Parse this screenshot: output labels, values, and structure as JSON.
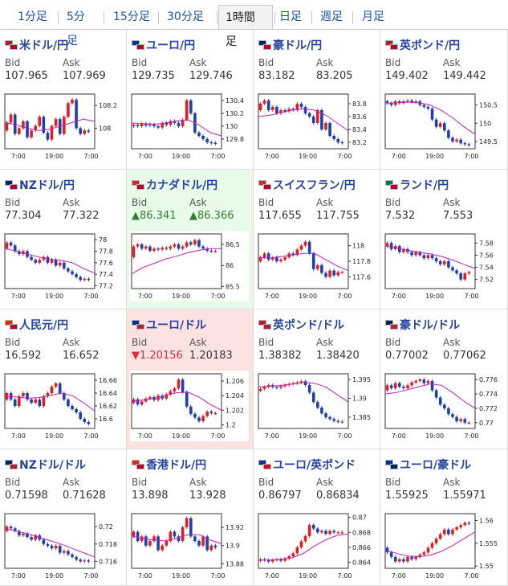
{
  "tabs": [
    {
      "label": "1分足",
      "active": false
    },
    {
      "label": "5分足",
      "active": false
    },
    {
      "label": "15分足",
      "active": false
    },
    {
      "label": "30分足",
      "active": false
    },
    {
      "label": "1時間足",
      "active": true
    },
    {
      "label": "日足",
      "active": false
    },
    {
      "label": "週足",
      "active": false
    },
    {
      "label": "月足",
      "active": false
    }
  ],
  "labels": {
    "bid": "Bid",
    "ask": "Ask"
  },
  "colors": {
    "link": "#1b52a6",
    "up_candle": "#e02020",
    "down_candle": "#1f3fb0",
    "ma": "#c020c0",
    "up_bg": "#e8fbe8",
    "down_bg": "#fde2e2",
    "up_text": "#2f7d2f",
    "down_text": "#e0283a"
  },
  "pairs": [
    {
      "name": "米ドル/円",
      "flags": [
        "#c8102e",
        "#bc002d"
      ],
      "bid": "107.965",
      "ask": "107.969",
      "change": "none",
      "chart": {
        "ticks_y": [
          "108.2",
          "108"
        ],
        "ticks_x": [
          "7:00",
          "19:00",
          "7:00"
        ],
        "range": [
          107.82,
          108.3
        ],
        "path": [
          107.98,
          108.05,
          108.12,
          107.95,
          108.0,
          108.06,
          107.92,
          107.98,
          108.02,
          108.1,
          107.96,
          107.9,
          108.02,
          108.08,
          107.95,
          108.1,
          108.22,
          108.25,
          108.0,
          107.95,
          107.98,
          107.97
        ],
        "ma": [
          108.05,
          108.03,
          108.0,
          107.98,
          107.99,
          108.02,
          108.05,
          108.08,
          108.06
        ]
      }
    },
    {
      "name": "ユーロ/円",
      "flags": [
        "#003399",
        "#bc002d"
      ],
      "bid": "129.735",
      "ask": "129.746",
      "change": "none",
      "chart": {
        "ticks_y": [
          "130.4",
          "130.2",
          "130",
          "129.8"
        ],
        "ticks_x": [
          "7:00",
          "19:00",
          "7:00"
        ],
        "range": [
          129.65,
          130.5
        ],
        "path": [
          130.0,
          130.02,
          130.0,
          130.04,
          130.01,
          130.03,
          130.0,
          129.98,
          130.05,
          130.02,
          130.08,
          130.05,
          130.0,
          130.1,
          130.4,
          130.2,
          129.9,
          129.85,
          129.8,
          129.75,
          129.74,
          129.73
        ],
        "ma": [
          130.05,
          130.04,
          130.03,
          130.05,
          130.08,
          130.1,
          130.02,
          129.9,
          129.85
        ]
      }
    },
    {
      "name": "豪ドル/円",
      "flags": [
        "#012169",
        "#bc002d"
      ],
      "bid": "83.182",
      "ask": "83.205",
      "change": "none",
      "chart": {
        "ticks_y": [
          "83.8",
          "83.6",
          "83.4",
          "83.2"
        ],
        "ticks_x": [
          "7:00",
          "19:00",
          "7:00"
        ],
        "range": [
          83.1,
          83.95
        ],
        "path": [
          83.7,
          83.8,
          83.85,
          83.7,
          83.75,
          83.65,
          83.7,
          83.68,
          83.72,
          83.7,
          83.8,
          83.75,
          83.65,
          83.6,
          83.5,
          83.7,
          83.4,
          83.5,
          83.3,
          83.25,
          83.2,
          83.19
        ],
        "ma": [
          83.6,
          83.62,
          83.66,
          83.7,
          83.72,
          83.7,
          83.62,
          83.5,
          83.38
        ]
      }
    },
    {
      "name": "英ポンド/円",
      "flags": [
        "#c8102e",
        "#bc002d"
      ],
      "bid": "149.402",
      "ask": "149.442",
      "change": "none",
      "chart": {
        "ticks_y": [
          "150.5",
          "150",
          "149.5"
        ],
        "ticks_x": [
          "7:00",
          "19:00",
          "7:00"
        ],
        "range": [
          149.3,
          150.8
        ],
        "path": [
          150.6,
          150.55,
          150.5,
          150.6,
          150.55,
          150.6,
          150.62,
          150.58,
          150.6,
          150.5,
          150.45,
          150.4,
          150.1,
          149.9,
          150.0,
          149.8,
          149.6,
          149.5,
          149.55,
          149.45,
          149.42,
          149.4
        ],
        "ma": [
          150.55,
          150.56,
          150.58,
          150.56,
          150.5,
          150.35,
          150.15,
          149.9,
          149.7
        ]
      }
    },
    {
      "name": "NZドル/円",
      "flags": [
        "#012169",
        "#bc002d"
      ],
      "bid": "77.304",
      "ask": "77.322",
      "change": "none",
      "chart": {
        "ticks_y": [
          "78",
          "77.8",
          "77.6",
          "77.4",
          "77.2"
        ],
        "ticks_x": [
          "7:00",
          "19:00",
          "7:00"
        ],
        "range": [
          77.15,
          78.1
        ],
        "path": [
          77.85,
          77.95,
          77.9,
          77.8,
          77.75,
          77.8,
          77.7,
          77.65,
          77.6,
          77.65,
          77.7,
          77.6,
          77.65,
          77.55,
          77.6,
          77.5,
          77.45,
          77.4,
          77.35,
          77.3,
          77.32,
          77.3
        ],
        "ma": [
          77.85,
          77.8,
          77.75,
          77.7,
          77.66,
          77.64,
          77.6,
          77.5,
          77.42
        ]
      }
    },
    {
      "name": "カナダドル/円",
      "flags": [
        "#d52b1e",
        "#bc002d"
      ],
      "bid": "86.341",
      "ask": "86.366",
      "change": "up",
      "chart": {
        "ticks_y": [
          "86.5",
          "86",
          "85.5"
        ],
        "ticks_x": [
          "7:00",
          "19:00",
          "7:00"
        ],
        "range": [
          85.45,
          86.75
        ],
        "path": [
          86.2,
          86.45,
          86.5,
          86.4,
          86.45,
          86.35,
          86.4,
          86.38,
          86.42,
          86.4,
          86.45,
          86.5,
          86.4,
          86.45,
          86.55,
          86.5,
          86.6,
          86.45,
          86.4,
          86.35,
          86.34,
          86.34
        ],
        "ma": [
          85.8,
          85.95,
          86.05,
          86.15,
          86.22,
          86.3,
          86.36,
          86.4,
          86.4
        ]
      }
    },
    {
      "name": "スイスフラン/円",
      "flags": [
        "#d52b1e",
        "#bc002d"
      ],
      "bid": "117.655",
      "ask": "117.755",
      "change": "none",
      "chart": {
        "ticks_y": [
          "118",
          "117.8",
          "117.6"
        ],
        "ticks_x": [
          "7:00",
          "19:00",
          "7:00"
        ],
        "range": [
          117.45,
          118.15
        ],
        "path": [
          117.8,
          117.85,
          117.9,
          117.82,
          117.85,
          117.8,
          117.82,
          117.85,
          117.9,
          117.88,
          117.95,
          118.0,
          118.05,
          117.9,
          117.7,
          117.75,
          117.65,
          117.6,
          117.68,
          117.62,
          117.66,
          117.66
        ],
        "ma": [
          117.85,
          117.84,
          117.86,
          117.88,
          117.9,
          117.9,
          117.82,
          117.74,
          117.68
        ]
      }
    },
    {
      "name": "ランド/円",
      "flags": [
        "#007a4d",
        "#bc002d"
      ],
      "bid": "7.532",
      "ask": "7.553",
      "change": "none",
      "chart": {
        "ticks_y": [
          "7.58",
          "7.56",
          "7.54",
          "7.52"
        ],
        "ticks_x": [
          "7:00",
          "19:00",
          "7:00"
        ],
        "range": [
          7.505,
          7.595
        ],
        "path": [
          7.575,
          7.58,
          7.57,
          7.575,
          7.565,
          7.57,
          7.565,
          7.56,
          7.565,
          7.56,
          7.555,
          7.56,
          7.555,
          7.55,
          7.545,
          7.55,
          7.54,
          7.535,
          7.53,
          7.52,
          7.53,
          7.532
        ],
        "ma": [
          7.575,
          7.572,
          7.568,
          7.565,
          7.562,
          7.558,
          7.552,
          7.545,
          7.538
        ]
      }
    },
    {
      "name": "人民元/円",
      "flags": [
        "#de2910",
        "#bc002d"
      ],
      "bid": "16.592",
      "ask": "16.652",
      "change": "none",
      "chart": {
        "ticks_y": [
          "16.66",
          "16.64",
          "16.62",
          "16.6"
        ],
        "ticks_x": [
          "7:00",
          "19:00",
          "7:00"
        ],
        "range": [
          16.585,
          16.67
        ],
        "path": [
          16.63,
          16.64,
          16.63,
          16.62,
          16.635,
          16.64,
          16.63,
          16.625,
          16.63,
          16.62,
          16.635,
          16.64,
          16.65,
          16.655,
          16.64,
          16.63,
          16.62,
          16.615,
          16.61,
          16.6,
          16.595,
          16.592
        ],
        "ma": [
          16.635,
          16.634,
          16.632,
          16.633,
          16.636,
          16.64,
          16.636,
          16.625,
          16.612
        ]
      }
    },
    {
      "name": "ユーロ/ドル",
      "flags": [
        "#003399",
        "#b22234"
      ],
      "bid": "1.20156",
      "ask": "1.20183",
      "change": "down",
      "chart": {
        "ticks_y": [
          "1.206",
          "1.204",
          "1.202",
          "1.2"
        ],
        "ticks_x": [
          "7:00",
          "19:00",
          "7:00"
        ],
        "range": [
          1.1995,
          1.207
        ],
        "path": [
          1.203,
          1.2035,
          1.2028,
          1.2032,
          1.2036,
          1.2038,
          1.2034,
          1.204,
          1.2036,
          1.2042,
          1.2046,
          1.205,
          1.2062,
          1.2045,
          1.2025,
          1.2015,
          1.201,
          1.2005,
          1.2012,
          1.2018,
          1.2016,
          1.2016
        ],
        "ma": [
          1.2032,
          1.2034,
          1.2036,
          1.204,
          1.2044,
          1.2045,
          1.2038,
          1.2028,
          1.202
        ]
      }
    },
    {
      "name": "英ポンド/ドル",
      "flags": [
        "#c8102e",
        "#b22234"
      ],
      "bid": "1.38382",
      "ask": "1.38420",
      "change": "none",
      "chart": {
        "ticks_y": [
          "1.395",
          "1.39",
          "1.385"
        ],
        "ticks_x": [
          "7:00",
          "19:00",
          "7:00"
        ],
        "range": [
          1.382,
          1.3965
        ],
        "path": [
          1.392,
          1.3925,
          1.393,
          1.3935,
          1.393,
          1.3928,
          1.3932,
          1.3935,
          1.3938,
          1.394,
          1.3942,
          1.3945,
          1.3935,
          1.3915,
          1.389,
          1.3875,
          1.386,
          1.385,
          1.3845,
          1.384,
          1.3838,
          1.3838
        ],
        "ma": [
          1.393,
          1.3932,
          1.3934,
          1.3938,
          1.3942,
          1.394,
          1.393,
          1.391,
          1.389
        ]
      }
    },
    {
      "name": "豪ドル/ドル",
      "flags": [
        "#012169",
        "#b22234"
      ],
      "bid": "0.77002",
      "ask": "0.77062",
      "change": "none",
      "chart": {
        "ticks_y": [
          "0.776",
          "0.774",
          "0.772",
          "0.77"
        ],
        "ticks_x": [
          "7:00",
          "19:00",
          "7:00"
        ],
        "range": [
          0.7692,
          0.7768
        ],
        "path": [
          0.7745,
          0.7752,
          0.7748,
          0.7755,
          0.775,
          0.7748,
          0.7752,
          0.7756,
          0.7758,
          0.776,
          0.7755,
          0.7758,
          0.7745,
          0.7735,
          0.7725,
          0.772,
          0.7712,
          0.7708,
          0.7702,
          0.7705,
          0.77,
          0.77
        ],
        "ma": [
          0.774,
          0.7742,
          0.7746,
          0.775,
          0.7754,
          0.7752,
          0.7742,
          0.773,
          0.772
        ]
      }
    },
    {
      "name": "NZドル/ドル",
      "flags": [
        "#012169",
        "#b22234"
      ],
      "bid": "0.71598",
      "ask": "0.71628",
      "change": "none",
      "chart": {
        "ticks_y": [
          "0.72",
          "0.718",
          "0.716"
        ],
        "ticks_x": [
          "7:00",
          "19:00",
          "7:00"
        ],
        "range": [
          0.7152,
          0.7215
        ],
        "path": [
          0.7195,
          0.72,
          0.7198,
          0.7195,
          0.719,
          0.7192,
          0.7188,
          0.7185,
          0.719,
          0.7185,
          0.718,
          0.7178,
          0.7175,
          0.7178,
          0.717,
          0.7172,
          0.7168,
          0.7165,
          0.7162,
          0.716,
          0.7161,
          0.716
        ],
        "ma": [
          0.7198,
          0.7195,
          0.7192,
          0.7188,
          0.7184,
          0.718,
          0.7175,
          0.717,
          0.7165
        ]
      }
    },
    {
      "name": "香港ドル/円",
      "flags": [
        "#de2910",
        "#bc002d"
      ],
      "bid": "13.898",
      "ask": "13.928",
      "change": "none",
      "chart": {
        "ticks_y": [
          "13.92",
          "13.9",
          "13.88"
        ],
        "ticks_x": [
          "7:00",
          "19:00",
          "7:00"
        ],
        "range": [
          13.875,
          13.935
        ],
        "path": [
          13.91,
          13.915,
          13.905,
          13.91,
          13.9,
          13.905,
          13.91,
          13.895,
          13.9,
          13.905,
          13.915,
          13.91,
          13.905,
          13.92,
          13.93,
          13.91,
          13.905,
          13.9,
          13.91,
          13.895,
          13.9,
          13.898
        ],
        "ma": [
          13.91,
          13.908,
          13.906,
          13.905,
          13.908,
          13.912,
          13.912,
          13.906,
          13.902
        ]
      }
    },
    {
      "name": "ユーロ/英ポンド",
      "flags": [
        "#003399",
        "#c8102e"
      ],
      "bid": "0.86797",
      "ask": "0.86834",
      "change": "none",
      "chart": {
        "ticks_y": [
          "0.87",
          "0.868",
          "0.866",
          "0.864"
        ],
        "ticks_x": [
          "7:00",
          "19:00",
          "7:00"
        ],
        "range": [
          0.8632,
          0.8705
        ],
        "path": [
          0.8642,
          0.8644,
          0.8643,
          0.8641,
          0.8643,
          0.8644,
          0.8642,
          0.8645,
          0.8648,
          0.8652,
          0.866,
          0.8668,
          0.8675,
          0.869,
          0.8685,
          0.868,
          0.8682,
          0.8678,
          0.8682,
          0.868,
          0.868,
          0.868
        ],
        "ma": [
          0.8643,
          0.8643,
          0.8644,
          0.8646,
          0.8652,
          0.8662,
          0.867,
          0.8676,
          0.8678
        ]
      }
    },
    {
      "name": "ユーロ/豪ドル",
      "flags": [
        "#003399",
        "#012169"
      ],
      "bid": "1.55925",
      "ask": "1.55971",
      "change": "none",
      "chart": {
        "ticks_y": [
          "1.56",
          "1.555",
          "1.55"
        ],
        "ticks_x": [
          "7:00",
          "19:00",
          "7:00"
        ],
        "range": [
          1.5495,
          1.5615
        ],
        "path": [
          1.554,
          1.553,
          1.552,
          1.551,
          1.5515,
          1.551,
          1.552,
          1.5515,
          1.552,
          1.5525,
          1.553,
          1.554,
          1.555,
          1.556,
          1.557,
          1.558,
          1.557,
          1.558,
          1.5585,
          1.559,
          1.5595,
          1.5593
        ],
        "ma": [
          1.5535,
          1.5528,
          1.5522,
          1.552,
          1.5524,
          1.5532,
          1.5545,
          1.556,
          1.5575
        ]
      }
    }
  ]
}
